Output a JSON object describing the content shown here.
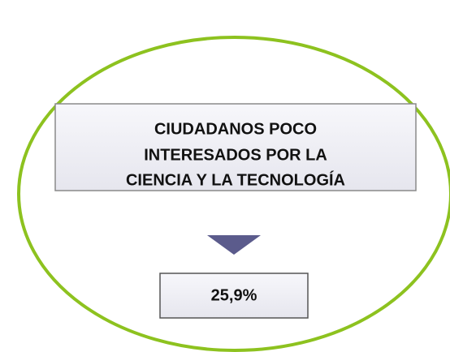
{
  "box": {
    "lines": [
      "CIUDADANOS POCO",
      "INTERESADOS POR LA",
      "CIENCIA Y LA TECNOLOGÍA"
    ]
  },
  "result": {
    "label": "25,9%"
  }
}
